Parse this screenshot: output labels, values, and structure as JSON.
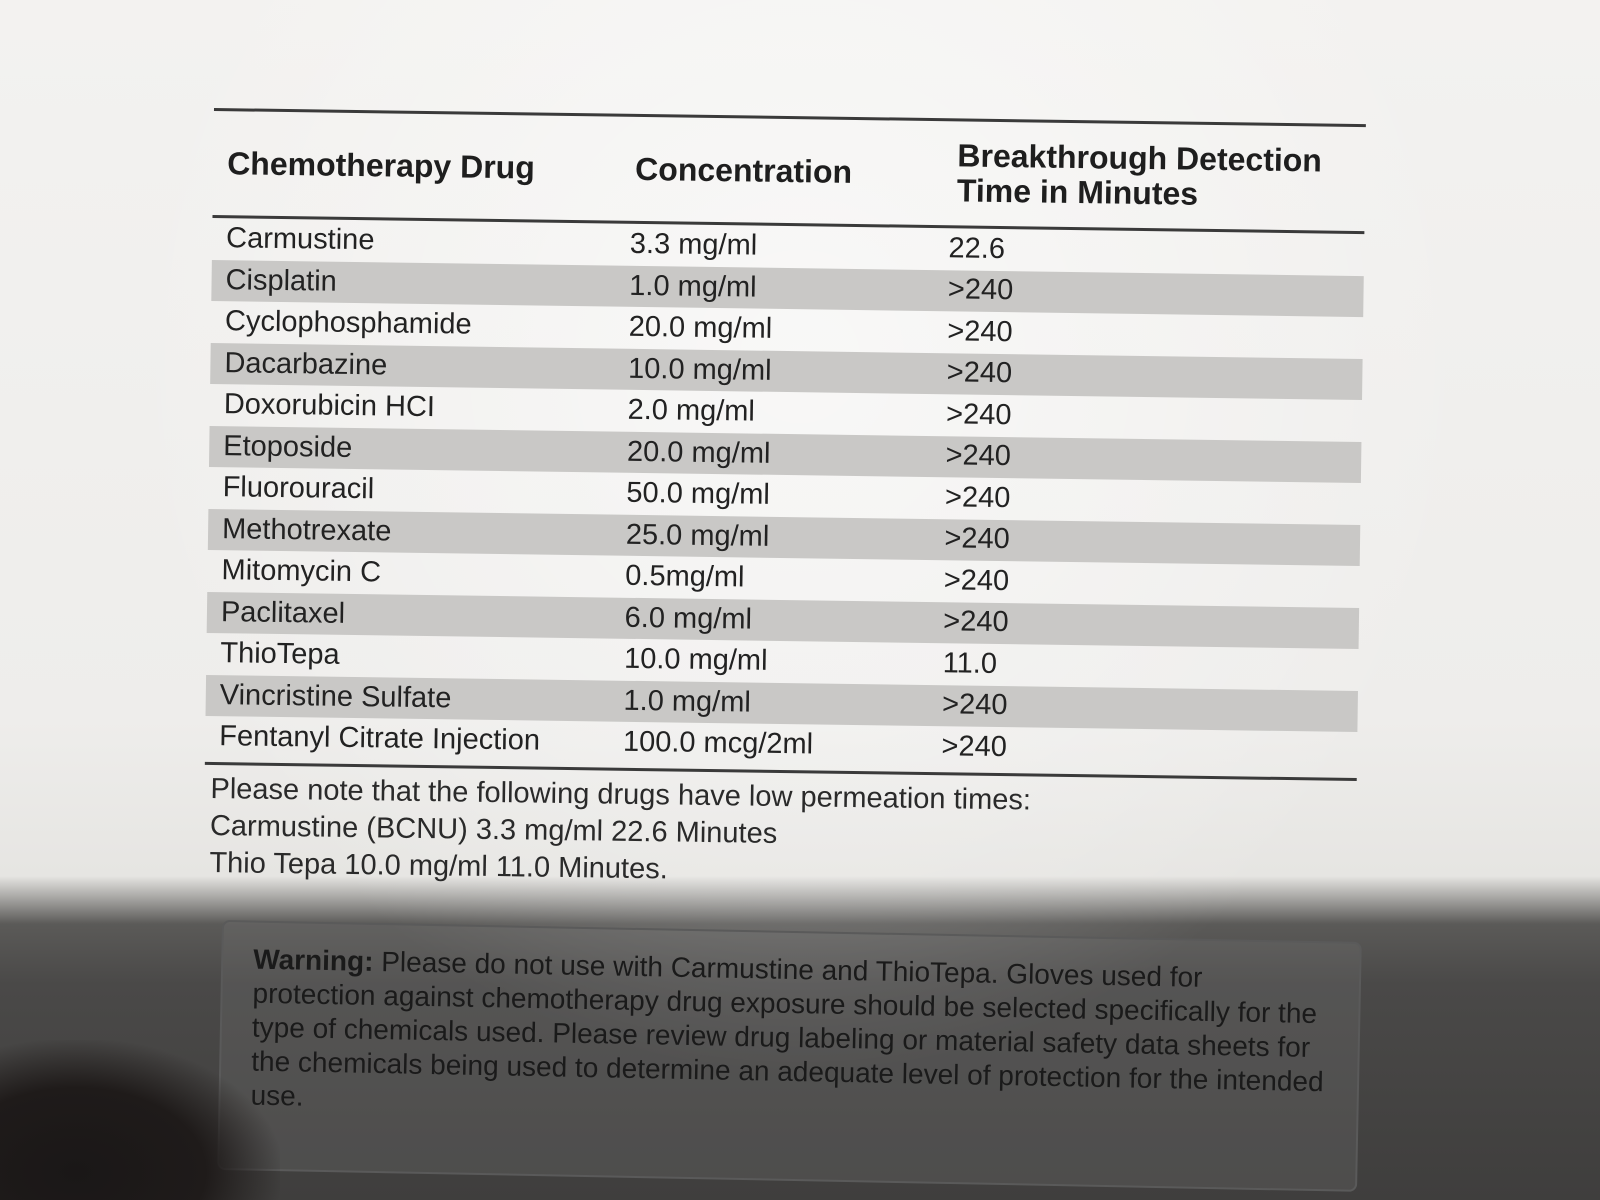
{
  "table": {
    "headers": {
      "drug": "Chemotherapy Drug",
      "concentration": "Concentration",
      "time_line1": "Breakthrough Detection",
      "time_line2": "Time in Minutes"
    },
    "rows": [
      {
        "drug": "Carmustine",
        "concentration": "3.3 mg/ml",
        "time": "22.6"
      },
      {
        "drug": "Cisplatin",
        "concentration": "1.0 mg/ml",
        "time": ">240"
      },
      {
        "drug": "Cyclophosphamide",
        "concentration": "20.0 mg/ml",
        "time": ">240"
      },
      {
        "drug": "Dacarbazine",
        "concentration": "10.0 mg/ml",
        "time": ">240"
      },
      {
        "drug": "Doxorubicin HCI",
        "concentration": "2.0 mg/ml",
        "time": ">240"
      },
      {
        "drug": "Etoposide",
        "concentration": "20.0 mg/ml",
        "time": ">240"
      },
      {
        "drug": "Fluorouracil",
        "concentration": "50.0 mg/ml",
        "time": ">240"
      },
      {
        "drug": "Methotrexate",
        "concentration": "25.0 mg/ml",
        "time": ">240"
      },
      {
        "drug": "Mitomycin C",
        "concentration": "0.5mg/ml",
        "time": ">240"
      },
      {
        "drug": "Paclitaxel",
        "concentration": "6.0 mg/ml",
        "time": ">240"
      },
      {
        "drug": "ThioTepa",
        "concentration": "10.0 mg/ml",
        "time": "11.0"
      },
      {
        "drug": "Vincristine Sulfate",
        "concentration": "1.0 mg/ml",
        "time": ">240"
      },
      {
        "drug": "Fentanyl Citrate Injection",
        "concentration": "100.0 mcg/2ml",
        "time": ">240"
      }
    ]
  },
  "note": {
    "line1": "Please note that the following drugs have low permeation times:",
    "line2": "Carmustine (BCNU) 3.3 mg/ml 22.6 Minutes",
    "line3": "Thio Tepa 10.0 mg/ml 11.0 Minutes."
  },
  "warning": {
    "label": "Warning:",
    "text": "Please do not use with Carmustine and ThioTepa. Gloves used for protection against chemotherapy drug exposure should be selected specifically for the type of chemicals used. Please review drug labeling or material safety data sheets for the chemicals being used to determine an adequate level of protection for the intended use."
  }
}
